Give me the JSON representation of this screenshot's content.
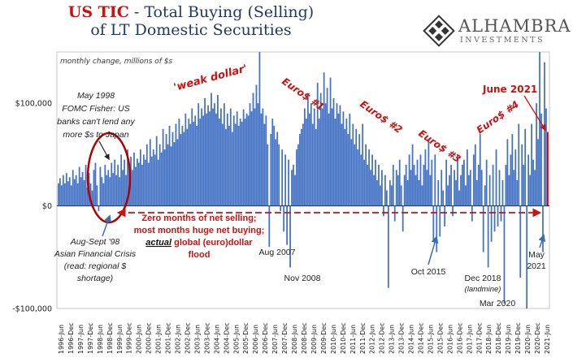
{
  "header": {
    "title_part1": "US TIC",
    "title_part2": " - Total Buying (Selling)",
    "title_line2": "of LT Domestic Securities"
  },
  "logo": {
    "name": "ALHAMBRA",
    "subtitle": "INVESTMENTS",
    "colors": [
      "#333333"
    ]
  },
  "chart_data": {
    "type": "bar",
    "unit_note": "monthly change, millions of $s",
    "y_ticks": [
      {
        "label": "$100,000",
        "value": 100000
      },
      {
        "label": "$0",
        "value": 0
      },
      {
        "label": "-$100,000",
        "value": -100000
      }
    ],
    "ylim": [
      -100000,
      150000
    ],
    "x_labels": [
      "1996-Jun",
      "1996-Dec",
      "1997-Jun",
      "1997-Dec",
      "1998-Jun",
      "1998-Dec",
      "1999-Jun",
      "1999-Dec",
      "2000-Jun",
      "2000-Dec",
      "2001-Jun",
      "2001-Dec",
      "2002-Jun",
      "2002-Dec",
      "2003-Jun",
      "2003-Dec",
      "2004-Jun",
      "2004-Dec",
      "2005-Jun",
      "2005-Dec",
      "2006-Jun",
      "2006-Dec",
      "2007-Jun",
      "2007-Dec",
      "2008-Jun",
      "2008-Dec",
      "2009-Jun",
      "2009-Dec",
      "2010-Jun",
      "2010-Dec",
      "2011-Jun",
      "2011-Dec",
      "2012-Jun",
      "2012-Dec",
      "2013-Jun",
      "2013-Dec",
      "2014-Jun",
      "2014-Dec",
      "2015-Jun",
      "2015-Dec",
      "2016-Jun",
      "2016-Dec",
      "2017-Jun",
      "2017-Dec",
      "2018-Jun",
      "2018-Dec",
      "2019-Jun",
      "2019-Dec",
      "2020-Jun",
      "2020-Dec",
      "2021-Jun"
    ],
    "series_color": "#4472c4",
    "last_bar_color": "#cc0000",
    "values": [
      22000,
      27000,
      20000,
      30000,
      22000,
      32000,
      24000,
      28000,
      20000,
      35000,
      26000,
      30000,
      22000,
      38000,
      28000,
      33000,
      25000,
      40000,
      18000,
      32000,
      22000,
      15000,
      35000,
      42000,
      20000,
      -5000,
      38000,
      28000,
      22000,
      40000,
      30000,
      35000,
      28000,
      42000,
      32000,
      45000,
      30000,
      40000,
      28000,
      50000,
      35000,
      45000,
      30000,
      55000,
      40000,
      48000,
      35000,
      52000,
      38000,
      46000,
      42000,
      55000,
      40000,
      50000,
      45000,
      60000,
      42000,
      65000,
      48000,
      55000,
      50000,
      68000,
      45000,
      60000,
      52000,
      75000,
      55000,
      70000,
      60000,
      78000,
      58000,
      72000,
      62000,
      80000,
      65000,
      85000,
      70000,
      78000,
      72000,
      90000,
      75000,
      85000,
      80000,
      95000,
      82000,
      88000,
      78000,
      100000,
      85000,
      95000,
      88000,
      105000,
      90000,
      98000,
      92000,
      110000,
      95000,
      100000,
      90000,
      108000,
      85000,
      95000,
      80000,
      100000,
      75000,
      90000,
      78000,
      95000,
      72000,
      88000,
      80000,
      92000,
      78000,
      85000,
      82000,
      94000,
      85000,
      90000,
      88000,
      100000,
      92000,
      110000,
      95000,
      118000,
      100000,
      150000,
      90000,
      95000,
      80000,
      88000,
      60000,
      -40000,
      70000,
      85000,
      78000,
      65000,
      72000,
      60000,
      -5000,
      55000,
      -25000,
      50000,
      -38000,
      45000,
      -60000,
      35000,
      40000,
      30000,
      55000,
      60000,
      70000,
      75000,
      80000,
      95000,
      85000,
      110000,
      90000,
      100000,
      80000,
      95000,
      75000,
      120000,
      85000,
      110000,
      95000,
      130000,
      100000,
      115000,
      90000,
      125000,
      95000,
      105000,
      85000,
      100000,
      90000,
      98000,
      80000,
      92000,
      75000,
      85000,
      70000,
      90000,
      65000,
      80000,
      60000,
      75000,
      55000,
      70000,
      50000,
      80000,
      45000,
      60000,
      40000,
      55000,
      35000,
      50000,
      30000,
      45000,
      25000,
      40000,
      20000,
      35000,
      -10000,
      30000,
      15000,
      -80000,
      25000,
      20000,
      40000,
      -15000,
      35000,
      30000,
      45000,
      20000,
      -25000,
      30000,
      40000,
      25000,
      50000,
      35000,
      60000,
      40000,
      30000,
      45000,
      25000,
      50000,
      20000,
      40000,
      55000,
      35000,
      65000,
      30000,
      45000,
      -35000,
      50000,
      -45000,
      25000,
      -30000,
      35000,
      15000,
      -20000,
      45000,
      20000,
      30000,
      40000,
      -10000,
      35000,
      25000,
      50000,
      15000,
      30000,
      40000,
      45000,
      20000,
      55000,
      30000,
      35000,
      -15000,
      50000,
      60000,
      25000,
      40000,
      70000,
      35000,
      -45000,
      20000,
      45000,
      -60000,
      30000,
      -35000,
      40000,
      -25000,
      55000,
      -20000,
      35000,
      -15000,
      25000,
      -95000,
      40000,
      65000,
      30000,
      50000,
      70000,
      35000,
      55000,
      25000,
      80000,
      -70000,
      60000,
      40000,
      75000,
      -110000,
      50000,
      30000,
      80000,
      45000,
      35000,
      100000,
      65000,
      150000,
      90000,
      -45000,
      140000,
      95000,
      72000
    ]
  },
  "annotations": {
    "weak_dollar": "'weak dollar'",
    "euro1": "Euro$ #1",
    "euro2": "Euro$ #2",
    "euro3": "Euro$ #3",
    "euro4": "Euro$ #4",
    "june2021": "June 2021",
    "may1998": [
      "May  1998",
      "FOMC Fisher: US",
      "banks can't lend any",
      "more $s to Japan"
    ],
    "asian": [
      "Aug-Sept '98",
      "Asian Financial Crisis",
      "(read: regional $",
      "shortage)"
    ],
    "zero_months": [
      "Zero months of net selling;",
      "most months huge net buying;"
    ],
    "actual": "actual",
    "global_dollar": " global (euro)dollar",
    "flood": "flood",
    "aug2007": "Aug 2007",
    "nov2008": "Nov 2008",
    "oct2015": "Oct 2015",
    "dec2018": "Dec 2018",
    "landmine": "(landmine)",
    "mar2020": "Mar 2020",
    "may2021": [
      "May",
      "2021"
    ]
  }
}
